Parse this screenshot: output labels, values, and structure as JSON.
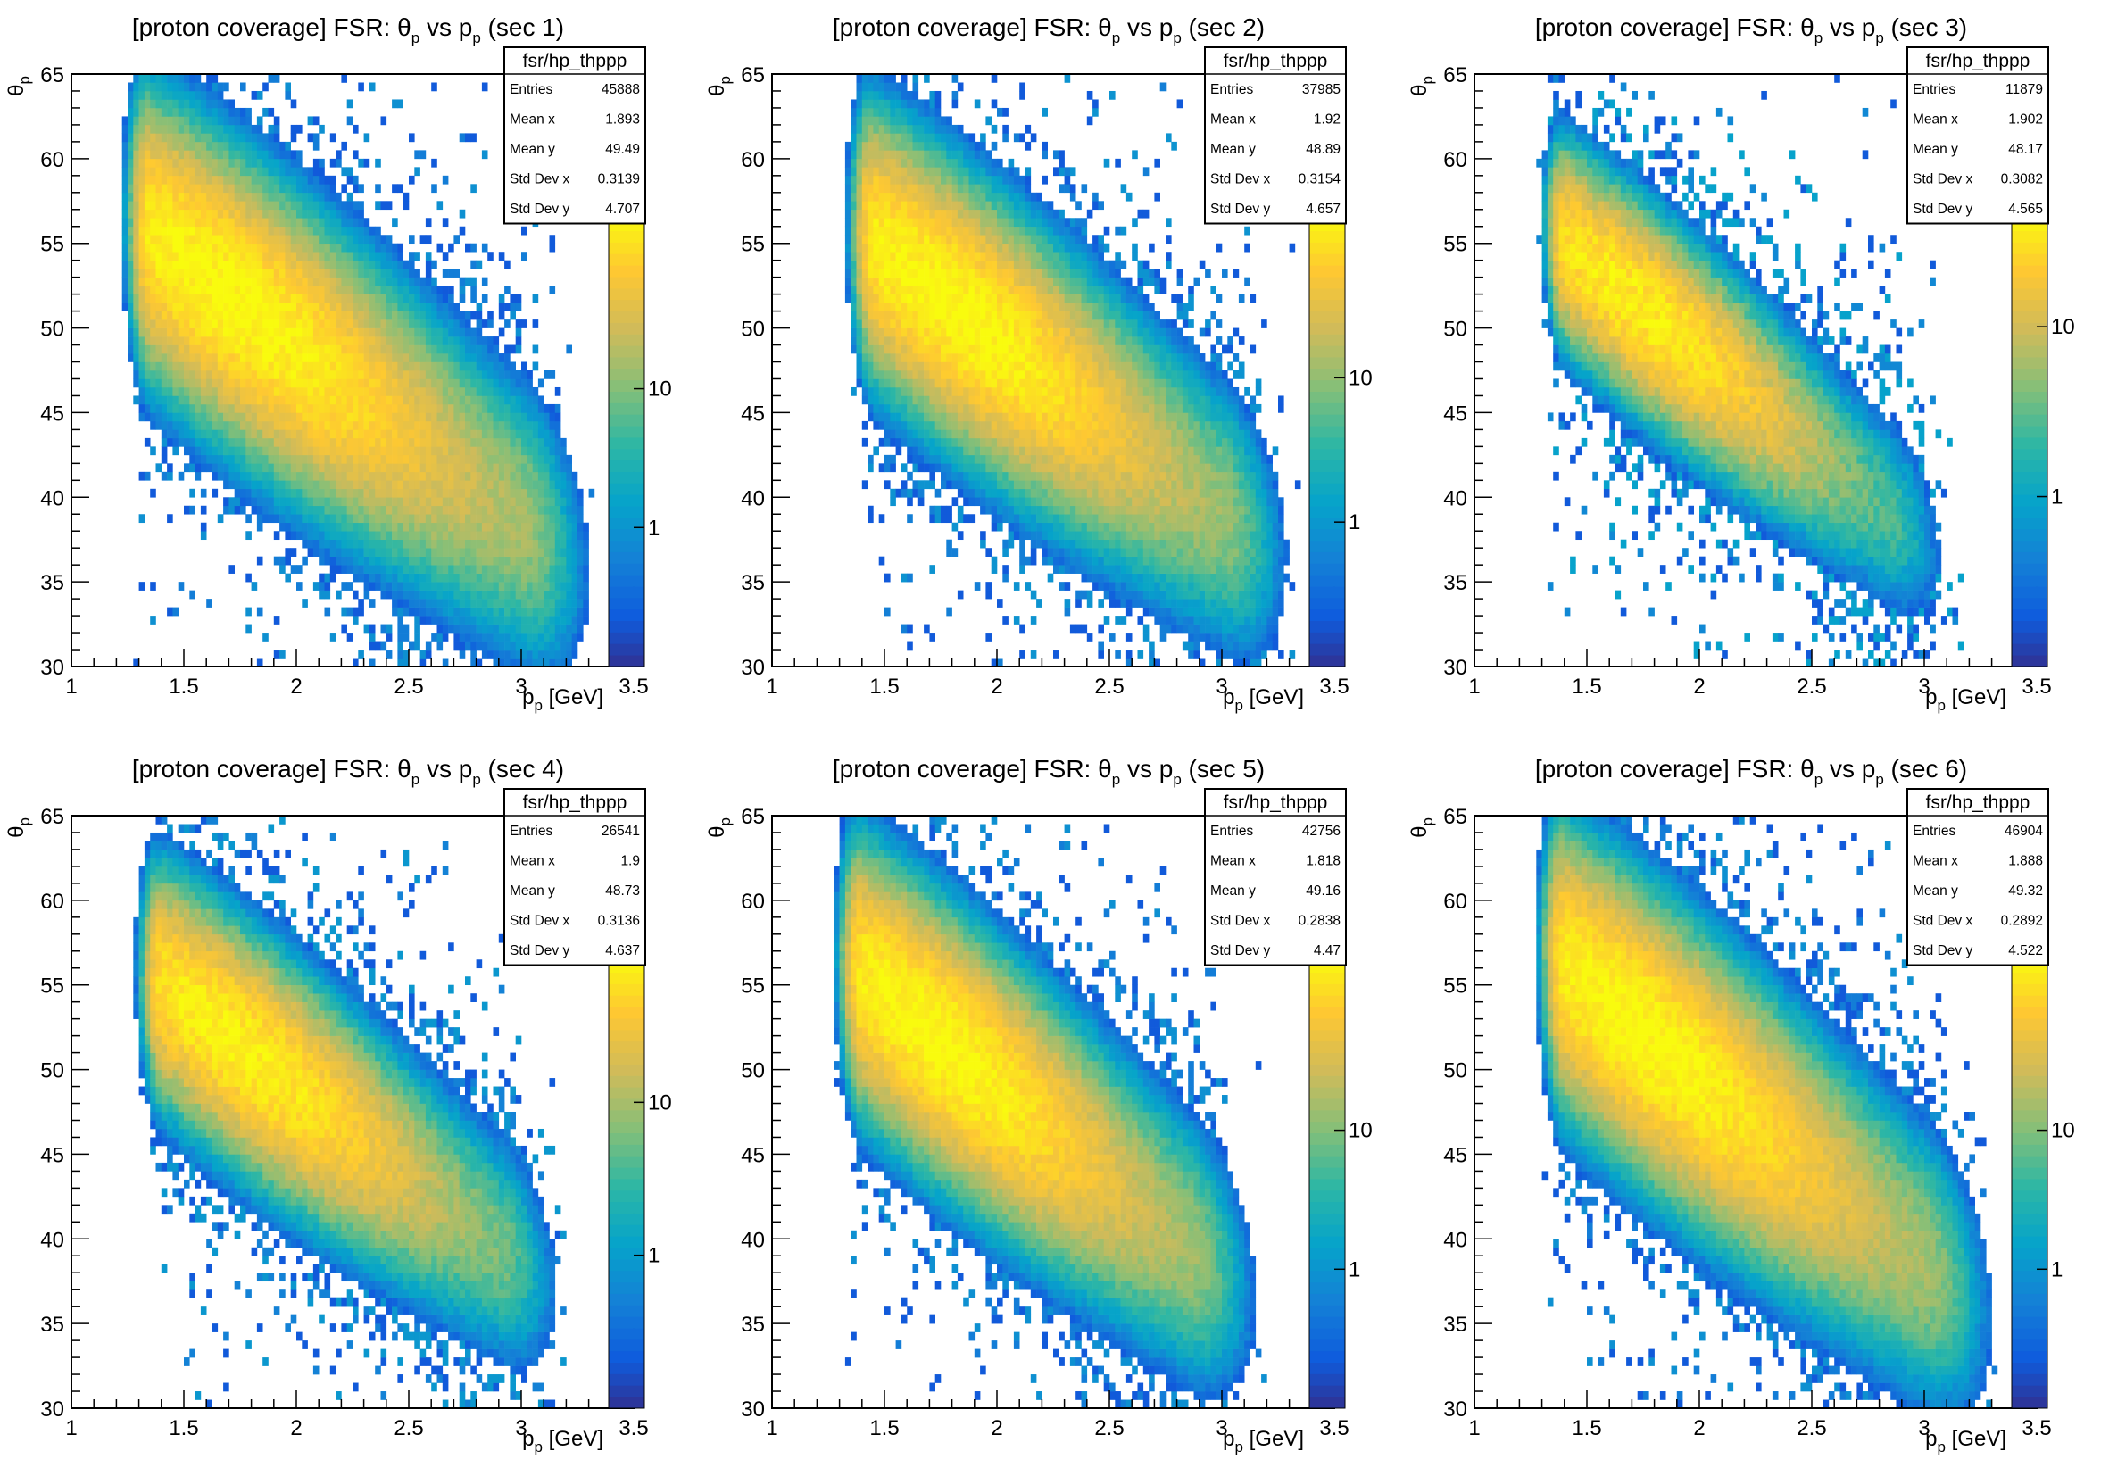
{
  "colors": {
    "palette": [
      "#352a87",
      "#0f5cdd",
      "#1481d6",
      "#06a4ca",
      "#2eb7a4",
      "#87bf77",
      "#d1bb59",
      "#fec832",
      "#f9fb0e"
    ],
    "frame": "#000000",
    "background": "#ffffff"
  },
  "chart_data": [
    {
      "type": "heatmap",
      "title": "[proton coverage] FSR: θp vs pp (sec 1)",
      "title_parts": {
        "prefix": "[proton coverage] FSR: ",
        "theta": "θ",
        "sub": "p",
        "vs": " vs ",
        "p": "p",
        "suffix": " (sec 1)"
      },
      "xlabel": {
        "main": "p",
        "sub": "p",
        "unit": " [GeV]"
      },
      "ylabel": {
        "main": "θ",
        "sub": "p"
      },
      "xlim": [
        1,
        3.5
      ],
      "ylim": [
        30,
        65
      ],
      "x_ticks": [
        "1",
        "1.5",
        "2",
        "2.5",
        "3",
        "3.5"
      ],
      "y_ticks": [
        "30",
        "35",
        "40",
        "45",
        "50",
        "55",
        "60",
        "65"
      ],
      "z_ticks": [
        "1",
        "10"
      ],
      "z_tick_values": [
        1,
        10
      ],
      "z_max": 200,
      "stats": {
        "name": "fsr/hp_thppp",
        "rows": [
          [
            "Entries",
            "45888"
          ],
          [
            "Mean x",
            "1.893"
          ],
          [
            "Mean y",
            "49.49"
          ],
          [
            "Std Dev x",
            "0.3139"
          ],
          [
            "Std Dev y",
            "4.707"
          ]
        ]
      },
      "density_model": {
        "ridge_x": [
          1.35,
          3.0
        ],
        "ridge_y": [
          55.5,
          38.5
        ],
        "spread_y": 3.6,
        "peak": 200,
        "scatter": 0.055
      },
      "color_scale": "log",
      "grid": false
    },
    {
      "type": "heatmap",
      "title": "[proton coverage] FSR: θp vs pp (sec 2)",
      "title_parts": {
        "prefix": "[proton coverage] FSR: ",
        "theta": "θ",
        "sub": "p",
        "vs": " vs ",
        "p": "p",
        "suffix": " (sec 2)"
      },
      "xlabel": {
        "main": "p",
        "sub": "p",
        "unit": " [GeV]"
      },
      "ylabel": {
        "main": "θ",
        "sub": "p"
      },
      "xlim": [
        1,
        3.5
      ],
      "ylim": [
        30,
        65
      ],
      "x_ticks": [
        "1",
        "1.5",
        "2",
        "2.5",
        "3",
        "3.5"
      ],
      "y_ticks": [
        "30",
        "35",
        "40",
        "45",
        "50",
        "55",
        "60",
        "65"
      ],
      "z_ticks": [
        "1",
        "10"
      ],
      "z_tick_values": [
        1,
        10
      ],
      "z_max": 150,
      "stats": {
        "name": "fsr/hp_thppp",
        "rows": [
          [
            "Entries",
            "37985"
          ],
          [
            "Mean x",
            "1.92"
          ],
          [
            "Mean y",
            "48.89"
          ],
          [
            "Std Dev x",
            "0.3154"
          ],
          [
            "Std Dev y",
            "4.657"
          ]
        ]
      },
      "density_model": {
        "ridge_x": [
          1.45,
          3.0
        ],
        "ridge_y": [
          55.0,
          39.0
        ],
        "spread_y": 3.5,
        "peak": 150,
        "scatter": 0.05
      },
      "color_scale": "log",
      "grid": false
    },
    {
      "type": "heatmap",
      "title": "[proton coverage] FSR: θp vs pp (sec 3)",
      "title_parts": {
        "prefix": "[proton coverage] FSR: ",
        "theta": "θ",
        "sub": "p",
        "vs": " vs ",
        "p": "p",
        "suffix": " (sec 3)"
      },
      "xlabel": {
        "main": "p",
        "sub": "p",
        "unit": " [GeV]"
      },
      "ylabel": {
        "main": "θ",
        "sub": "p"
      },
      "xlim": [
        1,
        3.5
      ],
      "ylim": [
        30,
        65
      ],
      "x_ticks": [
        "1",
        "1.5",
        "2",
        "2.5",
        "3",
        "3.5"
      ],
      "y_ticks": [
        "30",
        "35",
        "40",
        "45",
        "50",
        "55",
        "60",
        "65"
      ],
      "z_ticks": [
        "1",
        "10"
      ],
      "z_tick_values": [
        1,
        10
      ],
      "z_max": 50,
      "stats": {
        "name": "fsr/hp_thppp",
        "rows": [
          [
            "Entries",
            "11879"
          ],
          [
            "Mean x",
            "1.902"
          ],
          [
            "Mean y",
            "48.17"
          ],
          [
            "Std Dev x",
            "0.3082"
          ],
          [
            "Std Dev y",
            "4.565"
          ]
        ]
      },
      "density_model": {
        "ridge_x": [
          1.4,
          2.85
        ],
        "ridge_y": [
          55.0,
          39.0
        ],
        "spread_y": 3.0,
        "peak": 45,
        "scatter": 0.04
      },
      "color_scale": "log",
      "grid": false
    },
    {
      "type": "heatmap",
      "title": "[proton coverage] FSR: θp vs pp (sec 4)",
      "title_parts": {
        "prefix": "[proton coverage] FSR: ",
        "theta": "θ",
        "sub": "p",
        "vs": " vs ",
        "p": "p",
        "suffix": " (sec 4)"
      },
      "xlabel": {
        "main": "p",
        "sub": "p",
        "unit": " [GeV]"
      },
      "ylabel": {
        "main": "θ",
        "sub": "p"
      },
      "xlim": [
        1,
        3.5
      ],
      "ylim": [
        30,
        65
      ],
      "x_ticks": [
        "1",
        "1.5",
        "2",
        "2.5",
        "3",
        "3.5"
      ],
      "y_ticks": [
        "30",
        "35",
        "40",
        "45",
        "50",
        "55",
        "60",
        "65"
      ],
      "z_ticks": [
        "1",
        "10"
      ],
      "z_tick_values": [
        1,
        10
      ],
      "z_max": 100,
      "stats": {
        "name": "fsr/hp_thppp",
        "rows": [
          [
            "Entries",
            "26541"
          ],
          [
            "Mean x",
            "1.9"
          ],
          [
            "Mean y",
            "48.73"
          ],
          [
            "Std Dev x",
            "0.3136"
          ],
          [
            "Std Dev y",
            "4.637"
          ]
        ]
      },
      "density_model": {
        "ridge_x": [
          1.4,
          2.9
        ],
        "ridge_y": [
          55.0,
          39.5
        ],
        "spread_y": 3.2,
        "peak": 90,
        "scatter": 0.045
      },
      "color_scale": "log",
      "grid": false
    },
    {
      "type": "heatmap",
      "title": "[proton coverage] FSR: θp vs pp (sec 5)",
      "title_parts": {
        "prefix": "[proton coverage] FSR: ",
        "theta": "θ",
        "sub": "p",
        "vs": " vs ",
        "p": "p",
        "suffix": " (sec 5)"
      },
      "xlabel": {
        "main": "p",
        "sub": "p",
        "unit": " [GeV]"
      },
      "ylabel": {
        "main": "θ",
        "sub": "p"
      },
      "xlim": [
        1,
        3.5
      ],
      "ylim": [
        30,
        65
      ],
      "x_ticks": [
        "1",
        "1.5",
        "2",
        "2.5",
        "3",
        "3.5"
      ],
      "y_ticks": [
        "30",
        "35",
        "40",
        "45",
        "50",
        "55",
        "60",
        "65"
      ],
      "z_ticks": [
        "1",
        "10"
      ],
      "z_tick_values": [
        1,
        10
      ],
      "z_max": 200,
      "stats": {
        "name": "fsr/hp_thppp",
        "rows": [
          [
            "Entries",
            "42756"
          ],
          [
            "Mean x",
            "1.818"
          ],
          [
            "Mean y",
            "49.16"
          ],
          [
            "Std Dev x",
            "0.2838"
          ],
          [
            "Std Dev y",
            "4.47"
          ]
        ]
      },
      "density_model": {
        "ridge_x": [
          1.4,
          2.85
        ],
        "ridge_y": [
          55.5,
          39.5
        ],
        "spread_y": 3.4,
        "peak": 200,
        "scatter": 0.05
      },
      "color_scale": "log",
      "grid": false
    },
    {
      "type": "heatmap",
      "title": "[proton coverage] FSR: θp vs pp (sec 6)",
      "title_parts": {
        "prefix": "[proton coverage] FSR: ",
        "theta": "θ",
        "sub": "p",
        "vs": " vs ",
        "p": "p",
        "suffix": " (sec 6)"
      },
      "xlabel": {
        "main": "p",
        "sub": "p",
        "unit": " [GeV]"
      },
      "ylabel": {
        "main": "θ",
        "sub": "p"
      },
      "xlim": [
        1,
        3.5
      ],
      "ylim": [
        30,
        65
      ],
      "x_ticks": [
        "1",
        "1.5",
        "2",
        "2.5",
        "3",
        "3.5"
      ],
      "y_ticks": [
        "30",
        "35",
        "40",
        "45",
        "50",
        "55",
        "60",
        "65"
      ],
      "z_ticks": [
        "1",
        "10"
      ],
      "z_tick_values": [
        1,
        10
      ],
      "z_max": 200,
      "stats": {
        "name": "fsr/hp_thppp",
        "rows": [
          [
            "Entries",
            "46904"
          ],
          [
            "Mean x",
            "1.888"
          ],
          [
            "Mean y",
            "49.32"
          ],
          [
            "Std Dev x",
            "0.2892"
          ],
          [
            "Std Dev y",
            "4.522"
          ]
        ]
      },
      "density_model": {
        "ridge_x": [
          1.4,
          3.0
        ],
        "ridge_y": [
          56.0,
          38.5
        ],
        "spread_y": 3.6,
        "peak": 200,
        "scatter": 0.06
      },
      "color_scale": "log",
      "grid": false
    }
  ]
}
